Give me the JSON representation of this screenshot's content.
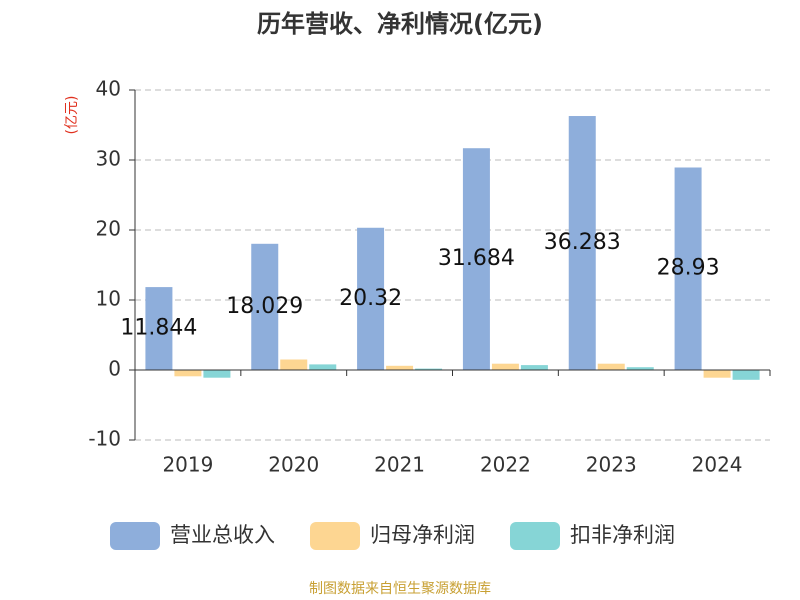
{
  "chart_data": {
    "type": "bar",
    "title": "历年营收、净利情况(亿元)",
    "y_label": "(亿元)",
    "categories": [
      "2019",
      "2020",
      "2021",
      "2022",
      "2023",
      "2024"
    ],
    "series": [
      {
        "name": "营业总收入",
        "color": "#8eaedb",
        "values": [
          11.844,
          18.029,
          20.32,
          31.684,
          36.283,
          28.93
        ],
        "show_labels": true
      },
      {
        "name": "归母净利润",
        "color": "#fdd692",
        "values": [
          -0.9,
          1.5,
          0.6,
          0.9,
          0.9,
          -1.1
        ]
      },
      {
        "name": "扣非净利润",
        "color": "#86d5d6",
        "values": [
          -1.1,
          0.8,
          0.2,
          0.7,
          0.4,
          -1.4
        ]
      }
    ],
    "ylim": [
      -10,
      40
    ],
    "yticks": [
      -10,
      0,
      10,
      20,
      30,
      40
    ],
    "grid": true,
    "source": "制图数据来自恒生聚源数据库"
  }
}
